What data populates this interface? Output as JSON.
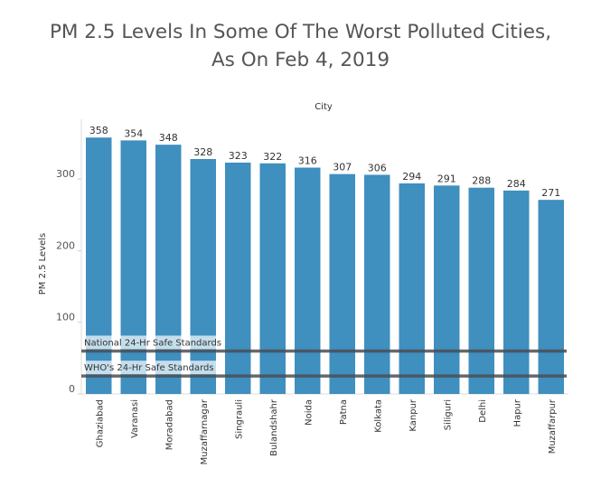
{
  "header": {
    "title_line1": "PM 2.5 Levels In Some Of The Worst Polluted Cities,",
    "title_line2": "As On Feb 4, 2019"
  },
  "chart_data": {
    "type": "bar",
    "title": "PM 2.5 Levels In Some Of The Worst Polluted Cities, As On Feb 4, 2019",
    "column_header": "City",
    "ylabel": "PM 2.5 Levels",
    "categories": [
      "Ghaziabad",
      "Varanasi",
      "Moradabad",
      "Muzaffarnagar",
      "Singrauli",
      "Bulandshahr",
      "Noida",
      "Patna",
      "Kolkata",
      "Kanpur",
      "Siliguri",
      "Delhi",
      "Hapur",
      "Muzaffarpur"
    ],
    "values": [
      358,
      354,
      348,
      328,
      323,
      322,
      316,
      307,
      306,
      294,
      291,
      288,
      284,
      271
    ],
    "yticks": [
      0,
      100,
      200,
      300
    ],
    "ylim": [
      0,
      370
    ],
    "bar_color": "#3f8fbf",
    "reference_lines": [
      {
        "label": "National 24-Hr Safe Standards",
        "value": 60
      },
      {
        "label": "WHO's 24-Hr Safe  Standards",
        "value": 25
      }
    ],
    "reference_color": "#4a4f55",
    "grid": false,
    "legend": "none"
  }
}
